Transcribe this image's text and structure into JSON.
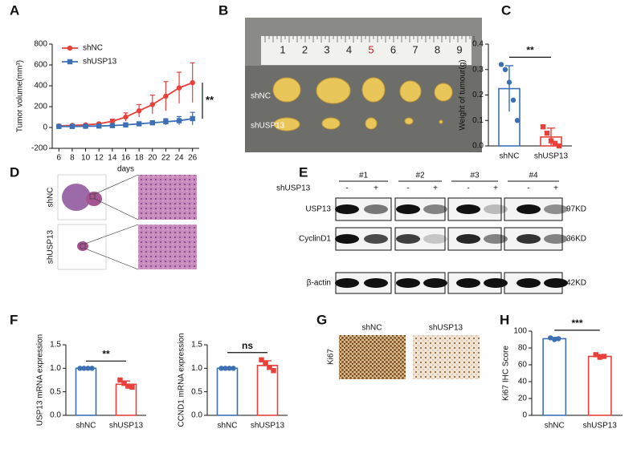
{
  "panel_labels": [
    "A",
    "B",
    "C",
    "D",
    "E",
    "F",
    "G",
    "H"
  ],
  "chart_data": [
    {
      "type": "line",
      "ylabel": "Tumor volume(mm³)",
      "xlabel": "days",
      "x": [
        6,
        8,
        10,
        12,
        14,
        16,
        18,
        20,
        22,
        24,
        26
      ],
      "xlim": [
        5,
        27
      ],
      "xticks": [
        6,
        8,
        10,
        12,
        14,
        16,
        18,
        20,
        22,
        24,
        26
      ],
      "ylim": [
        -200,
        800
      ],
      "yticks": [
        -200,
        0,
        200,
        400,
        600,
        800
      ],
      "series": [
        {
          "name": "shNC",
          "color": "#e8413c",
          "marker": "circle",
          "values": [
            15,
            20,
            25,
            35,
            60,
            100,
            160,
            220,
            300,
            380,
            430
          ],
          "errors": [
            5,
            5,
            8,
            10,
            20,
            40,
            60,
            90,
            140,
            150,
            190
          ]
        },
        {
          "name": "shUSP13",
          "color": "#3d6fb5",
          "marker": "square",
          "values": [
            10,
            10,
            12,
            14,
            18,
            25,
            35,
            45,
            55,
            65,
            85
          ],
          "errors": [
            3,
            3,
            4,
            5,
            6,
            10,
            15,
            20,
            30,
            40,
            60
          ]
        }
      ],
      "annotation": "**",
      "legend": "upper left"
    },
    {
      "type": "bar",
      "ylabel": "Weight of tumour(g)",
      "categories": [
        "shNC",
        "shUSP13"
      ],
      "colors": [
        "#3d6fb5",
        "#e8413c"
      ],
      "markers": [
        "circle",
        "square"
      ],
      "values": [
        0.225,
        0.035
      ],
      "errors": [
        0.09,
        0.035
      ],
      "points": [
        [
          0.32,
          0.3,
          0.25,
          0.18,
          0.1
        ],
        [
          0.075,
          0.05,
          0.02,
          0.01,
          0.0
        ]
      ],
      "ylim": [
        0,
        0.4
      ],
      "yticks": [
        {
          "value": 0,
          "label": "0.0"
        },
        0.1,
        0.2,
        0.3,
        0.4
      ],
      "annotation": "**"
    },
    {
      "type": "bar",
      "ylabel": "USP13 mRNA expression",
      "categories": [
        "shNC",
        "shUSP13"
      ],
      "colors": [
        "#3d6fb5",
        "#e8413c"
      ],
      "markers": [
        "circle",
        "square"
      ],
      "values": [
        1.0,
        0.66
      ],
      "errors": [
        0,
        0.07
      ],
      "points": [
        [
          1,
          1,
          1,
          1
        ],
        [
          0.75,
          0.68,
          0.62,
          0.6
        ]
      ],
      "ylim": [
        0,
        1.5
      ],
      "yticks": [
        {
          "value": 0,
          "label": "0.0"
        },
        0.5,
        {
          "value": 1,
          "label": "1.0"
        },
        1.5
      ],
      "annotation": "**"
    },
    {
      "type": "bar",
      "ylabel": "CCND1 mRNA expression",
      "categories": [
        "shNC",
        "shUSP13"
      ],
      "colors": [
        "#3d6fb5",
        "#e8413c"
      ],
      "markers": [
        "circle",
        "square"
      ],
      "values": [
        1.0,
        1.06
      ],
      "errors": [
        0,
        0.1
      ],
      "points": [
        [
          1,
          1,
          1,
          1
        ],
        [
          1.18,
          1.1,
          1.02,
          0.95
        ]
      ],
      "ylim": [
        0,
        1.5
      ],
      "yticks": [
        {
          "value": 0,
          "label": "0.0"
        },
        0.5,
        {
          "value": 1,
          "label": "1.0"
        },
        1.5
      ],
      "annotation": "ns"
    },
    {
      "type": "bar",
      "ylabel": "Ki67 IHC Score",
      "categories": [
        "shNC",
        "shUSP13"
      ],
      "colors": [
        "#3d6fb5",
        "#e8413c"
      ],
      "markers": [
        "circle",
        "square"
      ],
      "values": [
        91,
        70
      ],
      "errors": [
        1.5,
        2
      ],
      "points": [
        [
          92,
          90,
          91
        ],
        [
          72,
          69,
          70
        ]
      ],
      "ylim": [
        0,
        100
      ],
      "yticks": [
        0,
        20,
        40,
        60,
        80,
        100
      ],
      "annotation": "***"
    }
  ],
  "photo": {
    "ruler_numbers": [
      "1",
      "2",
      "3",
      "4",
      "5",
      "6",
      "7",
      "8",
      "9"
    ],
    "rows": [
      "shNC",
      "shUSP13"
    ]
  },
  "histology": {
    "rows": [
      "shNC",
      "shUSP13"
    ]
  },
  "western": {
    "samples": [
      "#1",
      "#2",
      "#3",
      "#4"
    ],
    "condition": "shUSP13",
    "signs": [
      "-",
      "+",
      "-",
      "+",
      "-",
      "+",
      "-",
      "+"
    ],
    "proteins": [
      "USP13",
      "CyclinD1",
      "β-actin"
    ],
    "sizes": [
      "97KD",
      "36KD",
      "42KD"
    ]
  },
  "ihc": {
    "columns": [
      "shNC",
      "shUSP13"
    ],
    "row": "Ki67"
  }
}
